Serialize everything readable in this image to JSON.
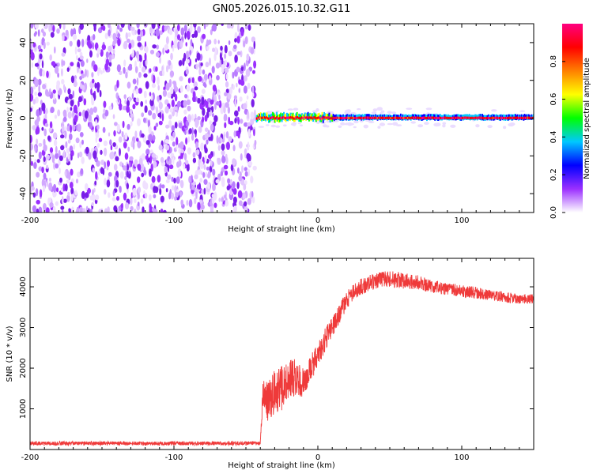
{
  "title": "GN05.2026.015.10.32.G11",
  "chart_data": [
    {
      "type": "heatmap",
      "title": "",
      "xlabel": "Height of straight line (km)",
      "ylabel": "Frequency (Hz)",
      "xlim": [
        -200,
        150
      ],
      "ylim": [
        -50,
        50
      ],
      "xticks": [
        -200,
        -100,
        0,
        100
      ],
      "yticks": [
        -40,
        -20,
        0,
        20,
        40
      ],
      "noise_region_x": [
        -200,
        -43
      ],
      "signal_region_x": [
        -43,
        150
      ],
      "signal_frequency_hz": 0,
      "colorbar": {
        "label": "Normalized spectral amplitude",
        "range": [
          0.0,
          1.0
        ],
        "ticks": [
          0.0,
          0.2,
          0.4,
          0.6,
          0.8
        ],
        "colors": [
          "#ffffff",
          "#9b30ff",
          "#0000ff",
          "#00c8ff",
          "#00ff00",
          "#ffff00",
          "#ff8000",
          "#ff0000",
          "#ff0080"
        ]
      }
    },
    {
      "type": "line",
      "title": "",
      "xlabel": "Height of straight line (km)",
      "ylabel": "SNR (10 * v/v)",
      "xlim": [
        -200,
        150
      ],
      "ylim": [
        0,
        4700
      ],
      "xticks": [
        -200,
        -100,
        0,
        100
      ],
      "yticks": [
        1000,
        2000,
        3000,
        4000
      ],
      "series": [
        {
          "name": "SNR",
          "color": "#ef3a3a",
          "x": [
            -200,
            -150,
            -100,
            -60,
            -40,
            -38,
            -35,
            -30,
            -25,
            -20,
            -15,
            -10,
            -5,
            0,
            5,
            10,
            15,
            20,
            25,
            30,
            40,
            50,
            60,
            70,
            80,
            90,
            100,
            110,
            120,
            130,
            140,
            150
          ],
          "y": [
            150,
            150,
            150,
            150,
            160,
            1500,
            1200,
            1400,
            1500,
            1700,
            1800,
            1600,
            2000,
            2300,
            2700,
            3000,
            3300,
            3700,
            3900,
            4000,
            4150,
            4200,
            4150,
            4100,
            4000,
            3950,
            3900,
            3850,
            3800,
            3750,
            3700,
            3700
          ],
          "noise_amplitude": [
            50,
            50,
            50,
            50,
            50,
            400,
            500,
            550,
            550,
            500,
            450,
            400,
            350,
            300,
            300,
            250,
            250,
            250,
            200,
            200,
            200,
            200,
            200,
            180,
            150,
            150,
            150,
            150,
            130,
            130,
            120,
            120
          ]
        }
      ]
    }
  ]
}
